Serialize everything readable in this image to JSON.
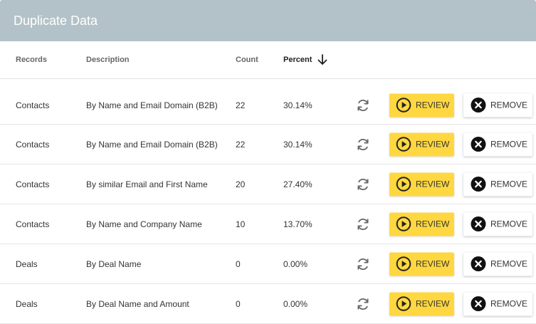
{
  "header": {
    "title": "Duplicate Data"
  },
  "columns": {
    "records": "Records",
    "description": "Description",
    "count": "Count",
    "percent": "Percent"
  },
  "sort": {
    "column": "percent",
    "direction": "descending",
    "icon": "arrow-down-icon"
  },
  "actions": {
    "review_label": "REVIEW",
    "remove_label": "REMOVE"
  },
  "icons": {
    "refresh": "refresh-icon",
    "review": "play-circle-icon",
    "remove": "close-circle-icon"
  },
  "colors": {
    "header_bg": "#b3c2c9",
    "review_bg": "#ffd740",
    "remove_icon": "#111111"
  },
  "rows": [
    {
      "record": "Contacts",
      "description": "By Name and Email Domain (B2B)",
      "count": "22",
      "percent": "30.14%"
    },
    {
      "record": "Contacts",
      "description": "By Name and Email Domain (B2B)",
      "count": "22",
      "percent": "30.14%"
    },
    {
      "record": "Contacts",
      "description": "By similar Email and First Name",
      "count": "20",
      "percent": "27.40%"
    },
    {
      "record": "Contacts",
      "description": "By Name and Company Name",
      "count": "10",
      "percent": "13.70%"
    },
    {
      "record": "Deals",
      "description": "By Deal Name",
      "count": "0",
      "percent": "0.00%"
    },
    {
      "record": "Deals",
      "description": "By Deal Name and Amount",
      "count": "0",
      "percent": "0.00%"
    }
  ]
}
